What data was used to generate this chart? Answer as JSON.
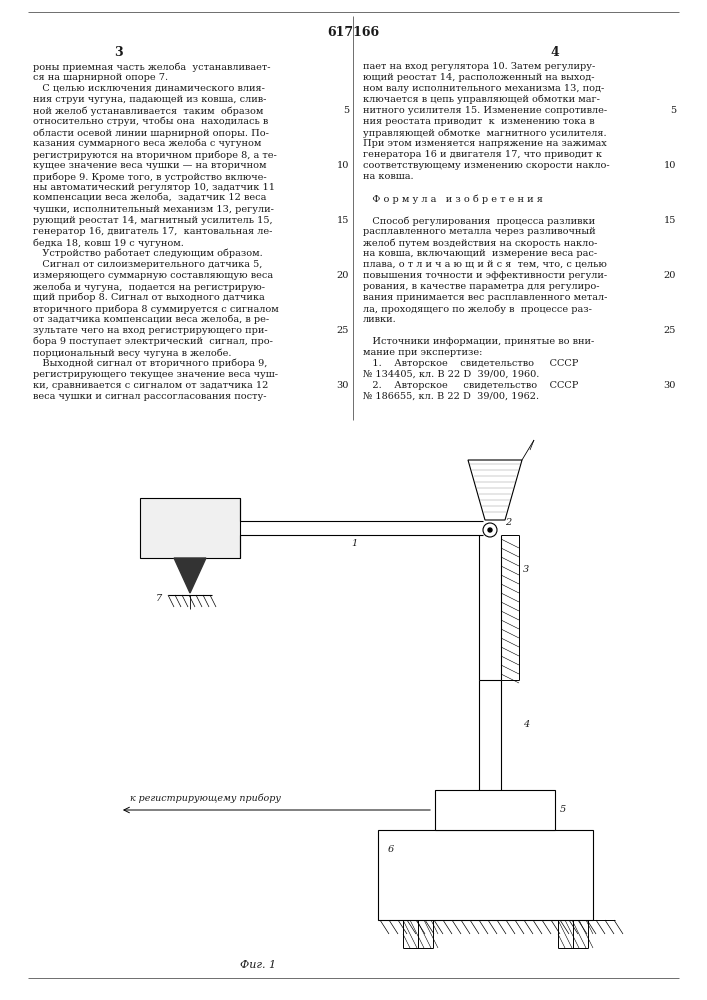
{
  "patent_number": "617166",
  "page_left": "3",
  "page_right": "4",
  "background_color": "#ffffff",
  "text_color": "#1a1a1a",
  "left_column_lines": [
    "роны приемная часть желоба  устанавливает-",
    "ся на шарнирной опоре 7.",
    "   С целью исключения динамического влия-",
    "ния струи чугуна, падающей из ковша, слив-",
    "ной желоб устанавливается  таким  образом",
    "относительно струи, чтобы она  находилась в",
    "области осевой линии шарнирной опоры. По-",
    "казания суммарного веса желоба с чугуном",
    "регистрируются на вторичном приборе 8, а те-",
    "кущее значение веса чушки — на вторичном",
    "приборе 9. Кроме того, в устройство включе-",
    "ны автоматический регулятор 10, задатчик 11",
    "компенсации веса желоба,  задатчик 12 веса",
    "чушки, исполнительный механизм 13, регули-",
    "рующий реостат 14, магнитный усилитель 15,",
    "генератор 16, двигатель 17,  кантовальная ле-",
    "бедка 18, ковш 19 с чугуном.",
    "   Устройство работает следующим образом.",
    "   Сигнал от силоизмерительного датчика 5,",
    "измеряющего суммарную составляющую веса",
    "желоба и чугуна,  подается на регистрирую-",
    "щий прибор 8. Сигнал от выходного датчика",
    "вторичного прибора 8 суммируется с сигналом",
    "от задатчика компенсации веса желоба, в ре-",
    "зультате чего на вход регистрирующего при-",
    "бора 9 поступает электрический  сигнал, про-",
    "порциональный весу чугуна в желобе.",
    "   Выходной сигнал от вторичного прибора 9,",
    "регистрирующего текущее значение веса чуш-",
    "ки, сравнивается с сигналом от задатчика 12",
    "веса чушки и сигнал рассогласования посту-"
  ],
  "right_column_lines": [
    "пает на вход регулятора 10. Затем регулиру-",
    "ющий реостат 14, расположенный на выход-",
    "ном валу исполнительного механизма 13, под-",
    "ключается в цепь управляющей обмотки маг-",
    "нитного усилителя 15. Изменение сопротивле-",
    "ния реостата приводит  к  изменению тока в",
    "управляющей обмотке  магнитного усилителя.",
    "При этом изменяется напряжение на зажимах",
    "генератора 16 и двигателя 17, что приводит к",
    "соответствующему изменению скорости накло-",
    "на ковша.",
    "",
    "   Ф о р м у л а   и з о б р е т е н и я",
    "",
    "   Способ регулирования  процесса разливки",
    "расплавленного металла через разливочный",
    "желоб путем воздействия на скорость накло-",
    "на ковша, включающий  измерение веса рас-",
    "плава, о т л и ч а ю щ и й с я  тем, что, с целью",
    "повышения точности и эффективности регули-",
    "рования, в качестве параметра для регулиро-",
    "вания принимается вес расплавленного метал-",
    "ла, проходящего по желобу в  процессе раз-",
    "ливки.",
    "",
    "   Источники информации, принятые во вни-",
    "мание при экспертизе:",
    "   1.    Авторское    свидетельство     СССР",
    "№ 134405, кл. В 22 D  39/00, 1960.",
    "   2.    Авторское     свидетельство    СССР",
    "№ 186655, кл. В 22 D  39/00, 1962."
  ],
  "line_number_rows": [
    4,
    9,
    14,
    19,
    24,
    29
  ],
  "line_number_values": [
    5,
    10,
    15,
    20,
    25,
    30
  ],
  "fig_label": "Фиг. 1"
}
